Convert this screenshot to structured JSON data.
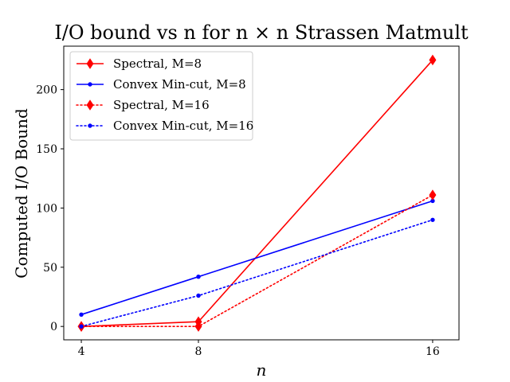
{
  "chart_data": {
    "type": "line",
    "title": "I/O bound vs n for n × n Strassen Matmult",
    "xlabel": "n",
    "ylabel": "Computed I/O Bound",
    "x": [
      4,
      8,
      16
    ],
    "x_ticks": [
      "4",
      "8",
      "16"
    ],
    "y_ticks": [
      0,
      50,
      100,
      150,
      200
    ],
    "xlim": [
      3.4,
      16.9
    ],
    "ylim": [
      -11.3,
      236.7
    ],
    "legend_position": "upper-left",
    "grid": false,
    "series": [
      {
        "name": "Spectral, M=8",
        "values": [
          0,
          4,
          225
        ],
        "color": "#ff0000",
        "linestyle": "solid",
        "marker": "diamond"
      },
      {
        "name": "Convex Min-cut, M=8",
        "values": [
          10,
          42,
          106
        ],
        "color": "#0000ff",
        "linestyle": "solid",
        "marker": "dot"
      },
      {
        "name": "Spectral, M=16",
        "values": [
          0,
          0,
          111
        ],
        "color": "#ff0000",
        "linestyle": "dotted",
        "marker": "diamond"
      },
      {
        "name": "Convex Min-cut, M=16",
        "values": [
          0,
          26,
          90
        ],
        "color": "#0000ff",
        "linestyle": "dotted",
        "marker": "dot"
      }
    ]
  }
}
